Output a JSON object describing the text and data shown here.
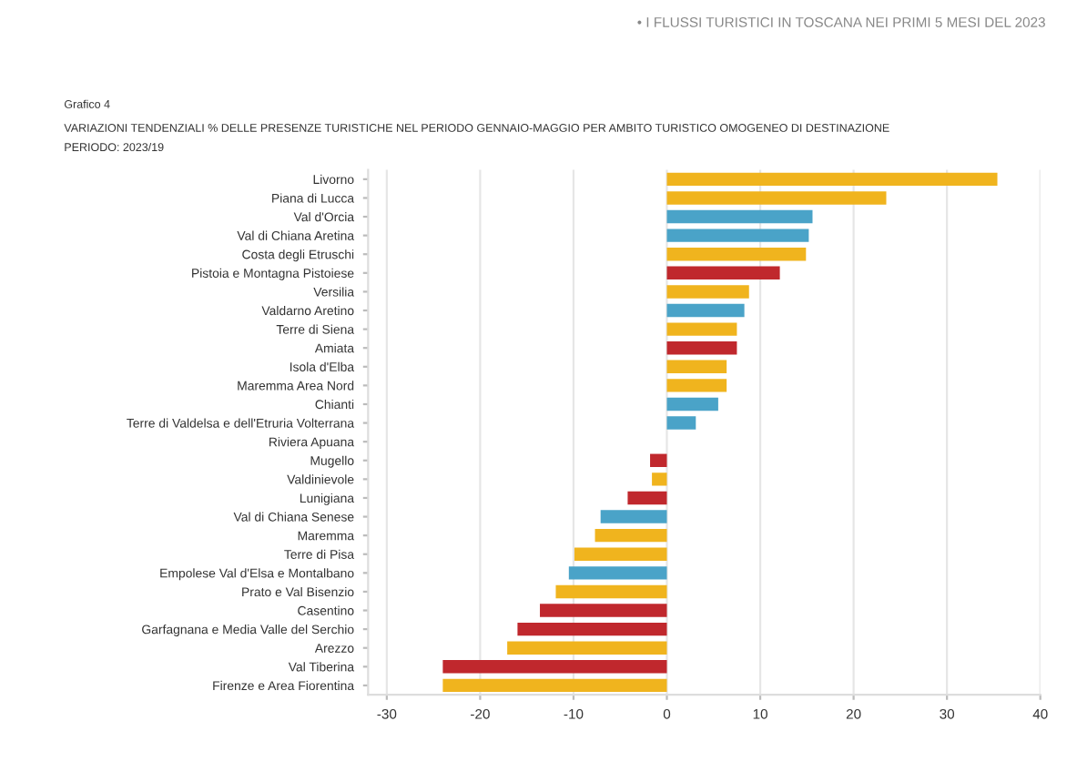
{
  "chart_data": {
    "type": "bar",
    "orientation": "horizontal",
    "title": "VARIAZIONI TENDENZIALI % DELLE PRESENZE TURISTICHE NEL PERIODO GENNAIO-MAGGIO PER AMBITO TURISTICO OMOGENEO DI DESTINAZIONE",
    "subtitle": "PERIODO: 2023/19",
    "annotations": [
      "• I FLUSSI TURISTICI IN TOSCANA NEI PRIMI 5 MESI DEL 2023",
      "Grafico 4"
    ],
    "categories": [
      "Livorno",
      "Piana di Lucca",
      "Val d'Orcia",
      "Val di Chiana Aretina",
      "Costa degli Etruschi",
      "Pistoia e Montagna Pistoiese",
      "Versilia",
      "Valdarno Aretino",
      "Terre di Siena",
      "Amiata",
      "Isola d'Elba",
      "Maremma Area Nord",
      "Chianti",
      "Terre di Valdelsa e dell'Etruria Volterrana",
      "Riviera Apuana",
      "Mugello",
      "Valdinievole",
      "Lunigiana",
      "Val di Chiana Senese",
      "Maremma",
      "Terre di Pisa",
      "Empolese Val d'Elsa e Montalbano",
      "Prato e Val Bisenzio",
      "Casentino",
      "Garfagnana e Media Valle del Serchio",
      "Arezzo",
      "Val Tiberina",
      "Firenze e Area Fiorentina"
    ],
    "values": [
      35.4,
      23.5,
      15.6,
      15.2,
      14.9,
      12.1,
      8.8,
      8.3,
      7.5,
      7.5,
      6.4,
      6.4,
      5.5,
      3.1,
      0,
      -1.8,
      -1.6,
      -4.2,
      -7.1,
      -7.7,
      -9.9,
      -10.5,
      -11.9,
      -13.6,
      -16.0,
      -17.1,
      -24.0,
      -24.0
    ],
    "colors": [
      "#f0b41e",
      "#f0b41e",
      "#4aa3c8",
      "#4aa3c8",
      "#f0b41e",
      "#c0282d",
      "#f0b41e",
      "#4aa3c8",
      "#f0b41e",
      "#c0282d",
      "#f0b41e",
      "#f0b41e",
      "#4aa3c8",
      "#4aa3c8",
      "#f0b41e",
      "#c0282d",
      "#f0b41e",
      "#c0282d",
      "#4aa3c8",
      "#f0b41e",
      "#f0b41e",
      "#4aa3c8",
      "#f0b41e",
      "#c0282d",
      "#c0282d",
      "#f0b41e",
      "#c0282d",
      "#f0b41e"
    ],
    "xlim": [
      -32,
      40
    ],
    "xticks": [
      -30,
      -20,
      -10,
      0,
      10,
      20,
      30,
      40
    ],
    "grid": "x"
  }
}
